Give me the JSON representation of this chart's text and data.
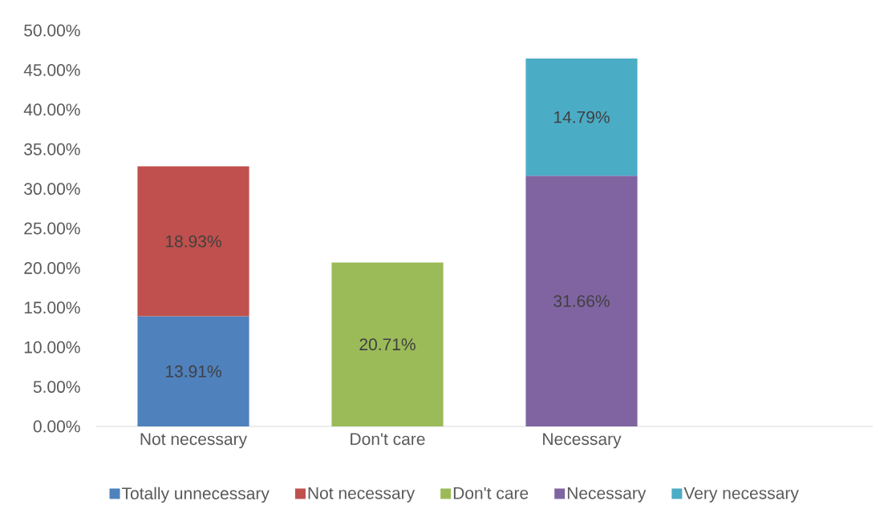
{
  "chart_data": {
    "type": "bar",
    "stacked": true,
    "categories": [
      "Not necessary",
      "Don't care",
      "Necessary",
      null
    ],
    "series": [
      {
        "name": "Totally unnecessary",
        "color": "#4f81bd",
        "values": [
          13.91,
          null,
          null,
          null
        ],
        "value_labels": [
          "13.91%",
          null,
          null,
          null
        ]
      },
      {
        "name": "Not necessary",
        "color": "#c0504d",
        "values": [
          18.93,
          null,
          null,
          null
        ],
        "value_labels": [
          "18.93%",
          null,
          null,
          null
        ]
      },
      {
        "name": "Don't care",
        "color": "#9bbb59",
        "values": [
          null,
          20.71,
          null,
          null
        ],
        "value_labels": [
          null,
          "20.71%",
          null,
          null
        ]
      },
      {
        "name": "Necessary",
        "color": "#8064a2",
        "values": [
          null,
          null,
          31.66,
          null
        ],
        "value_labels": [
          null,
          null,
          "31.66%",
          null
        ]
      },
      {
        "name": "Very necessary",
        "color": "#4bacc6",
        "values": [
          null,
          null,
          14.79,
          null
        ],
        "value_labels": [
          null,
          null,
          "14.79%",
          null
        ]
      }
    ],
    "ylim": [
      0,
      50
    ],
    "yticks": [
      {
        "value": 0,
        "label": "0.00%"
      },
      {
        "value": 5,
        "label": "5.00%"
      },
      {
        "value": 10,
        "label": "10.00%"
      },
      {
        "value": 15,
        "label": "15.00%"
      },
      {
        "value": 20,
        "label": "20.00%"
      },
      {
        "value": 25,
        "label": "25.00%"
      },
      {
        "value": 30,
        "label": "30.00%"
      },
      {
        "value": 35,
        "label": "35.00%"
      },
      {
        "value": 40,
        "label": "40.00%"
      },
      {
        "value": 45,
        "label": "45.00%"
      },
      {
        "value": 50,
        "label": "50.00%"
      }
    ],
    "legend": "bottom"
  }
}
